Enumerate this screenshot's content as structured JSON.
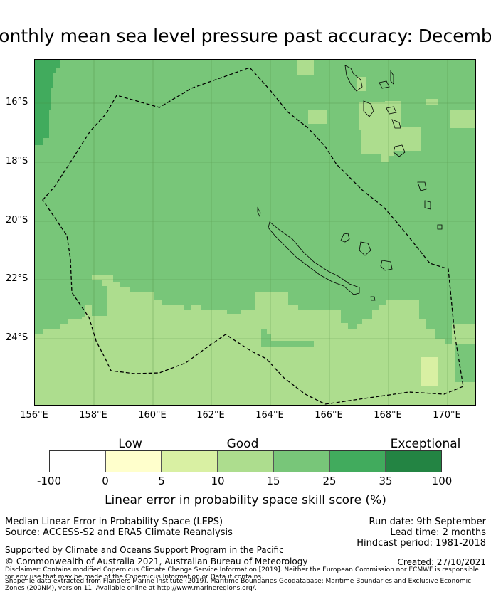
{
  "title": "onthly mean sea level pressure past accuracy: Decemb",
  "map": {
    "lat_labels": [
      "16°S",
      "18°S",
      "20°S",
      "22°S",
      "24°S"
    ],
    "lon_labels": [
      "156°E",
      "158°E",
      "160°E",
      "162°E",
      "164°E",
      "166°E",
      "168°E",
      "170°E"
    ]
  },
  "legend": {
    "categories": [
      "Low",
      "Good",
      "Exceptional"
    ],
    "ticks": [
      "-100",
      "0",
      "5",
      "10",
      "15",
      "25",
      "35",
      "100"
    ],
    "colors": [
      "#ffffff",
      "#ffffcc",
      "#d9f0a3",
      "#addd8e",
      "#78c679",
      "#41ab5d",
      "#238443"
    ],
    "title": "Linear error in probability space skill score (%)"
  },
  "info": {
    "line1": "Median Linear Error in Probability Space (LEPS)",
    "line2": "Source: ACCESS-S2 and ERA5 Climate Reanalysis",
    "run_date": "Run date: 9th September",
    "lead_time": "Lead time: 2 months",
    "hindcast": "Hindcast period: 1981-2018",
    "supported": "Supported by Climate and Oceans Support Program in the Pacific",
    "copyright": "© Commonwealth of Australia 2021, Australian Bureau of Meteorology",
    "created": "Created: 27/10/2021",
    "disclaimer": "Disclaimer: Contains modified Copernicus Climate Change Service Information [2019]. Neither the European Commission nor ECMWF is responsible for any use that may be made of the Copernicus Information or Data it contains.",
    "shapefile": "Shapefile data extracted from Flanders Marine Institute (2019). Maritime Boundaries Geodatabase: Maritime Boundaries and Exclusive Economic Zones (200NM), version 11. Available online at http://www.marineregions.org/."
  }
}
